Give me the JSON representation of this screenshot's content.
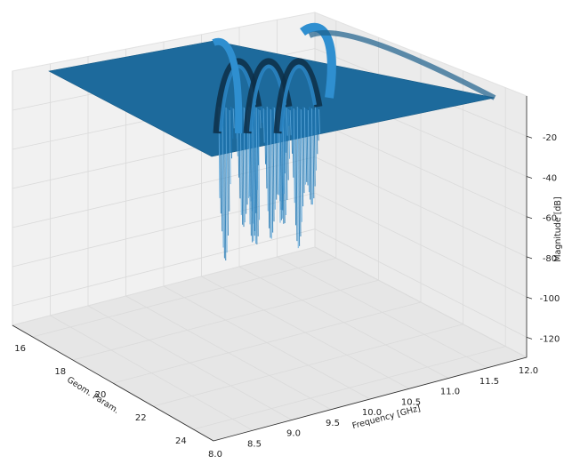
{
  "chart_data": {
    "type": "surface",
    "projection": "3d",
    "title": "",
    "xlabel": "Frequency [GHz]",
    "ylabel": "Geom. Param.",
    "zlabel": "Magnitude [dB]",
    "x_ticks": [
      "8.0",
      "8.5",
      "9.0",
      "9.5",
      "10.0",
      "10.5",
      "11.0",
      "11.5",
      "12.0"
    ],
    "y_ticks": [
      "16",
      "18",
      "20",
      "22",
      "24"
    ],
    "z_ticks": [
      "-20",
      "-40",
      "-60",
      "-80",
      "-100",
      "-120"
    ],
    "xlim": [
      8.0,
      12.0
    ],
    "ylim": [
      15,
      25
    ],
    "zlim": [
      -130,
      0
    ],
    "grid": true,
    "colors": {
      "surface": "#1f77b4",
      "pane": "#f2f2f2",
      "grid": "#dadada"
    },
    "series": [
      {
        "note_values": "deep resonance notches",
        "notches": [
          {
            "x": 9.6,
            "min_db": -110
          },
          {
            "x": 9.95,
            "min_db": -105
          },
          {
            "x": 10.3,
            "min_db": -100
          }
        ],
        "baseline_db": -3
      }
    ]
  }
}
